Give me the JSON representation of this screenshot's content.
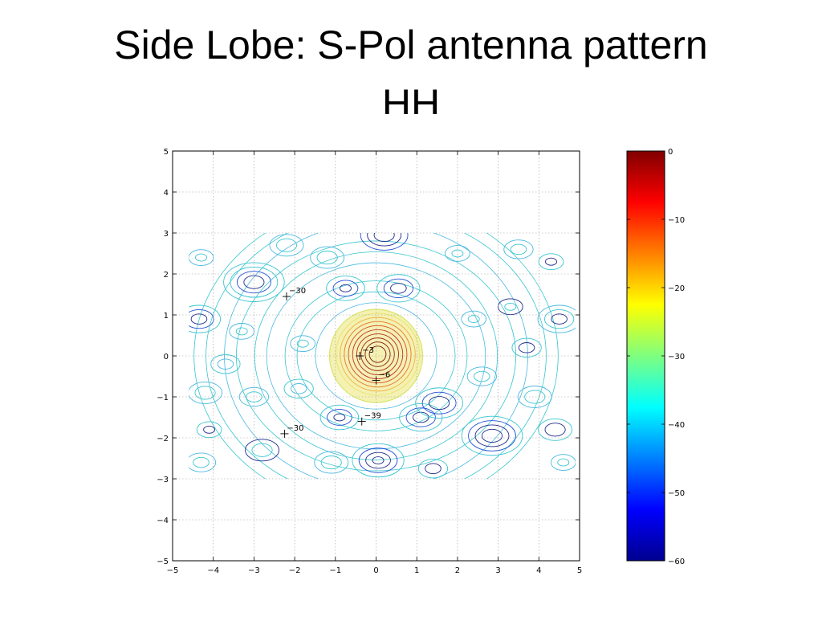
{
  "slide": {
    "title": "Side Lobe: S-Pol antenna pattern",
    "subtitle": "HH"
  },
  "chart_data": {
    "type": "contour",
    "xlim": [
      -5,
      5
    ],
    "ylim": [
      -5,
      5
    ],
    "x_ticks": [
      -5,
      -4,
      -3,
      -2,
      -1,
      0,
      1,
      2,
      3,
      4,
      5
    ],
    "y_ticks": [
      5,
      4,
      3,
      2,
      1,
      0,
      -1,
      -2,
      -3,
      -4,
      -5
    ],
    "grid": true,
    "data_extent": {
      "x": [
        -4.6,
        4.9
      ],
      "y": [
        -3,
        3
      ]
    },
    "main_lobe": {
      "center": [
        0,
        0
      ],
      "radius": 1.2
    },
    "markers": [
      {
        "x": -2.2,
        "y": 1.45,
        "label": "−30"
      },
      {
        "x": -0.4,
        "y": 0.0,
        "label": "−3"
      },
      {
        "x": 0.0,
        "y": -0.6,
        "label": "−6"
      },
      {
        "x": -0.35,
        "y": -1.6,
        "label": "−39"
      },
      {
        "x": -2.25,
        "y": -1.9,
        "label": "−30"
      }
    ],
    "colorbar": {
      "range": [
        -60,
        0
      ],
      "ticks": [
        0,
        -10,
        -20,
        -30,
        -40,
        -50,
        -60
      ],
      "tick_labels": [
        "0",
        "−10",
        "−20",
        "−30",
        "−40",
        "−50",
        "−60"
      ],
      "colormap": "jet"
    }
  }
}
